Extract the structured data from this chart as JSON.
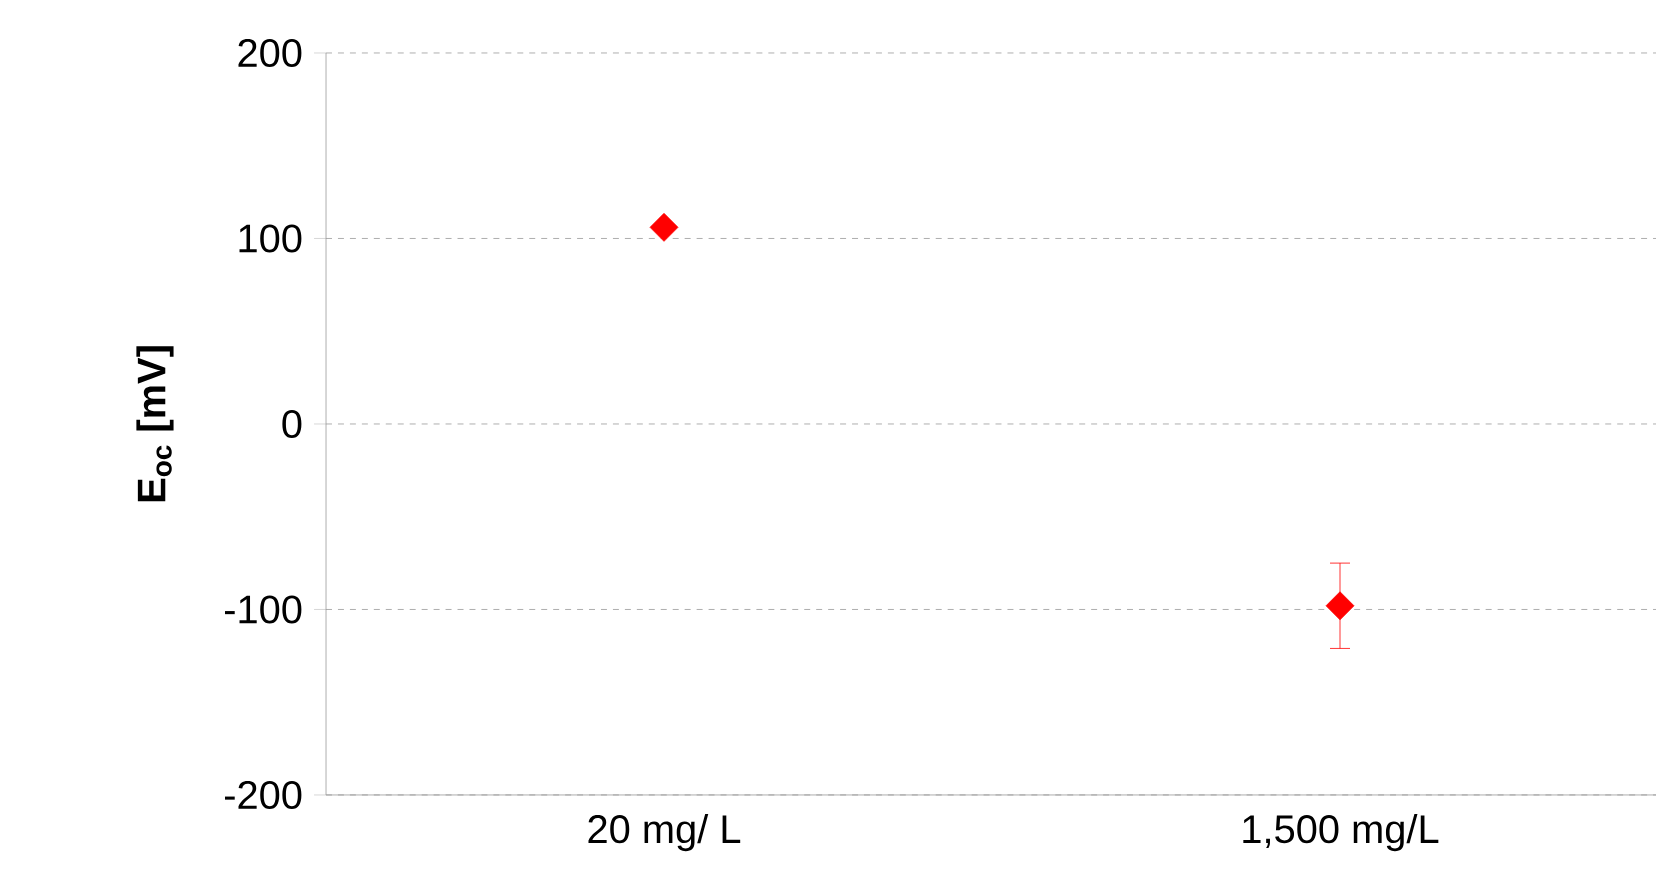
{
  "chart_data": {
    "type": "scatter",
    "ylabel": "**E$_{oc}$ [mV]**",
    "categories": [
      "20 mg/ L",
      "1,500 mg/L"
    ],
    "series": [
      {
        "color": "#ff0000",
        "values": [
          106,
          -98
        ],
        "errors": [
          null,
          23
        ]
      }
    ],
    "ylim": [
      -200,
      200
    ],
    "yticks": [
      -200,
      -100,
      0,
      100,
      200
    ],
    "grid": "y",
    "marker": "diamond"
  }
}
